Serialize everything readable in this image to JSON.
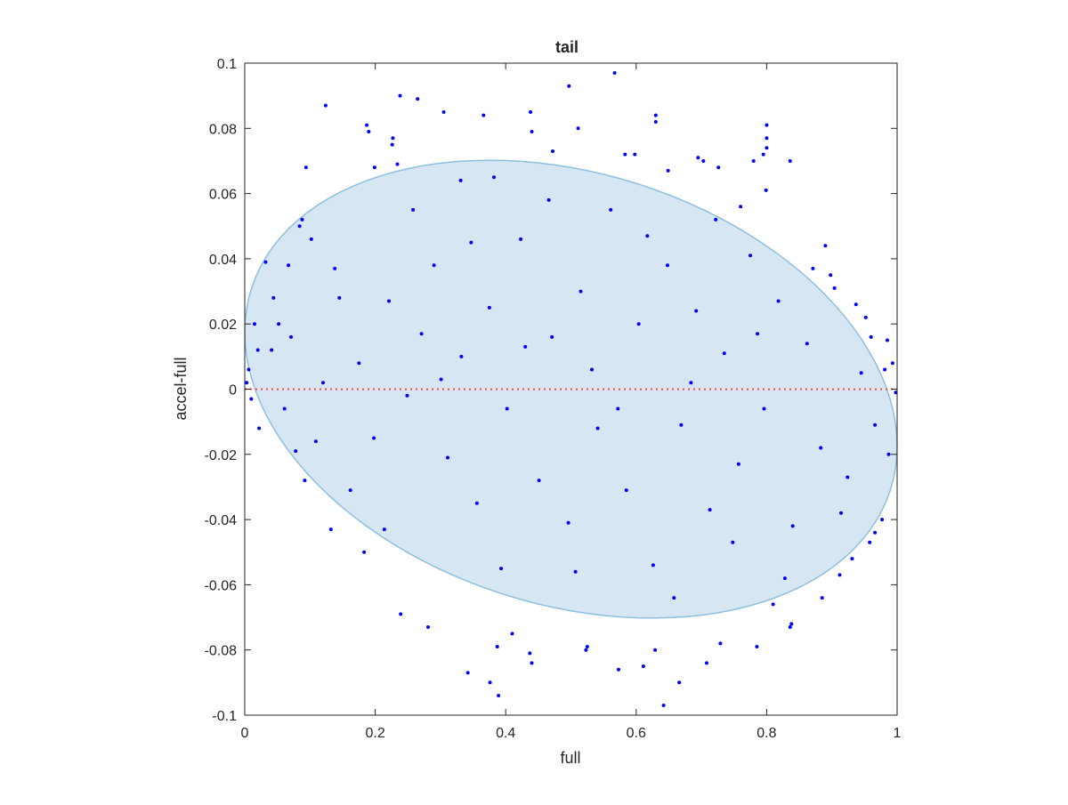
{
  "chart_data": {
    "type": "scatter",
    "title": "tail",
    "xlabel": "full",
    "ylabel": "accel-full",
    "xlim": [
      0,
      1
    ],
    "ylim": [
      -0.1,
      0.1
    ],
    "xticks": [
      "0",
      "0.2",
      "0.4",
      "0.6",
      "0.8",
      "1"
    ],
    "yticks": [
      "-0.1",
      "-0.08",
      "-0.06",
      "-0.04",
      "-0.02",
      "0",
      "0.02",
      "0.04",
      "0.06",
      "0.08",
      "0.1"
    ],
    "grid": false,
    "colors": {
      "points": "#0000ff",
      "ellipse_fill": "#d6e7f3",
      "ellipse_edge": "#8dbfdf",
      "zero_line": "#ff4040",
      "axes": "#262626"
    },
    "ellipse": {
      "description_center": [
        0.5,
        0.0
      ],
      "semi_axis_x": 0.5,
      "semi_axis_y": 0.068,
      "tilt_slope": -0.035
    },
    "zero_line_y": 0,
    "series": [
      {
        "values": [
          [
            0.124,
            0.087
          ],
          [
            0.238,
            0.09
          ],
          [
            0.265,
            0.089
          ],
          [
            0.305,
            0.085
          ],
          [
            0.366,
            0.084
          ],
          [
            0.438,
            0.085
          ],
          [
            0.44,
            0.079
          ],
          [
            0.497,
            0.093
          ],
          [
            0.567,
            0.097
          ],
          [
            0.511,
            0.08
          ],
          [
            0.472,
            0.073
          ],
          [
            0.583,
            0.072
          ],
          [
            0.63,
            0.084
          ],
          [
            0.63,
            0.082
          ],
          [
            0.598,
            0.072
          ],
          [
            0.649,
            0.067
          ],
          [
            0.695,
            0.071
          ],
          [
            0.703,
            0.07
          ],
          [
            0.726,
            0.068
          ],
          [
            0.78,
            0.07
          ],
          [
            0.8,
            0.081
          ],
          [
            0.8,
            0.077
          ],
          [
            0.8,
            0.074
          ],
          [
            0.795,
            0.072
          ],
          [
            0.187,
            0.081
          ],
          [
            0.19,
            0.079
          ],
          [
            0.227,
            0.077
          ],
          [
            0.226,
            0.075
          ],
          [
            0.094,
            0.068
          ],
          [
            0.382,
            0.065
          ],
          [
            0.331,
            0.064
          ],
          [
            0.234,
            0.069
          ],
          [
            0.199,
            0.068
          ],
          [
            0.836,
            0.07
          ],
          [
            0.799,
            0.061
          ],
          [
            0.76,
            0.056
          ],
          [
            0.89,
            0.044
          ],
          [
            0.898,
            0.035
          ],
          [
            0.937,
            0.026
          ],
          [
            0.96,
            0.016
          ],
          [
            0.985,
            0.015
          ],
          [
            0.993,
            0.008
          ],
          [
            0.998,
            -0.001
          ],
          [
            0.987,
            -0.02
          ],
          [
            0.977,
            -0.04
          ],
          [
            0.966,
            -0.044
          ],
          [
            0.958,
            -0.047
          ],
          [
            0.931,
            -0.052
          ],
          [
            0.912,
            -0.057
          ],
          [
            0.885,
            -0.064
          ],
          [
            0.838,
            -0.072
          ],
          [
            0.836,
            -0.073
          ],
          [
            0.81,
            -0.066
          ],
          [
            0.785,
            -0.079
          ],
          [
            0.729,
            -0.078
          ],
          [
            0.708,
            -0.084
          ],
          [
            0.666,
            -0.09
          ],
          [
            0.642,
            -0.097
          ],
          [
            0.629,
            -0.08
          ],
          [
            0.611,
            -0.085
          ],
          [
            0.573,
            -0.086
          ],
          [
            0.523,
            -0.08
          ],
          [
            0.525,
            -0.079
          ],
          [
            0.44,
            -0.084
          ],
          [
            0.437,
            -0.081
          ],
          [
            0.41,
            -0.075
          ],
          [
            0.387,
            -0.079
          ],
          [
            0.376,
            -0.09
          ],
          [
            0.389,
            -0.094
          ],
          [
            0.342,
            -0.087
          ],
          [
            0.239,
            -0.069
          ],
          [
            0.281,
            -0.073
          ],
          [
            0.132,
            -0.043
          ],
          [
            0.183,
            -0.05
          ],
          [
            0.067,
            0.038
          ],
          [
            0.084,
            0.05
          ],
          [
            0.088,
            0.052
          ],
          [
            0.102,
            0.046
          ],
          [
            0.032,
            0.039
          ],
          [
            0.015,
            0.02
          ],
          [
            0.006,
            0.006
          ],
          [
            0.01,
            -0.003
          ],
          [
            0.003,
            0.002
          ],
          [
            0.02,
            0.012
          ],
          [
            0.041,
            0.012
          ],
          [
            0.052,
            0.02
          ],
          [
            0.061,
            -0.006
          ],
          [
            0.078,
            -0.019
          ],
          [
            0.092,
            -0.028
          ],
          [
            0.12,
            0.002
          ],
          [
            0.145,
            0.028
          ],
          [
            0.175,
            0.008
          ],
          [
            0.198,
            -0.015
          ],
          [
            0.221,
            0.027
          ],
          [
            0.249,
            -0.002
          ],
          [
            0.271,
            0.017
          ],
          [
            0.29,
            0.038
          ],
          [
            0.311,
            -0.021
          ],
          [
            0.332,
            0.01
          ],
          [
            0.356,
            -0.035
          ],
          [
            0.375,
            0.025
          ],
          [
            0.402,
            -0.006
          ],
          [
            0.423,
            0.046
          ],
          [
            0.451,
            -0.028
          ],
          [
            0.471,
            0.016
          ],
          [
            0.496,
            -0.041
          ],
          [
            0.515,
            0.03
          ],
          [
            0.541,
            -0.012
          ],
          [
            0.561,
            0.055
          ],
          [
            0.585,
            -0.031
          ],
          [
            0.604,
            0.02
          ],
          [
            0.626,
            -0.054
          ],
          [
            0.648,
            0.038
          ],
          [
            0.669,
            -0.011
          ],
          [
            0.692,
            0.024
          ],
          [
            0.713,
            -0.037
          ],
          [
            0.735,
            0.011
          ],
          [
            0.757,
            -0.023
          ],
          [
            0.775,
            0.041
          ],
          [
            0.796,
            -0.006
          ],
          [
            0.818,
            0.027
          ],
          [
            0.84,
            -0.042
          ],
          [
            0.862,
            0.014
          ],
          [
            0.883,
            -0.018
          ],
          [
            0.904,
            0.031
          ],
          [
            0.924,
            -0.027
          ],
          [
            0.945,
            0.005
          ],
          [
            0.966,
            -0.011
          ],
          [
            0.022,
            -0.012
          ],
          [
            0.044,
            0.028
          ],
          [
            0.071,
            0.016
          ],
          [
            0.109,
            -0.016
          ],
          [
            0.138,
            0.037
          ],
          [
            0.162,
            -0.031
          ],
          [
            0.214,
            -0.043
          ],
          [
            0.258,
            0.055
          ],
          [
            0.301,
            0.003
          ],
          [
            0.347,
            0.045
          ],
          [
            0.393,
            -0.055
          ],
          [
            0.43,
            0.013
          ],
          [
            0.466,
            0.058
          ],
          [
            0.507,
            -0.056
          ],
          [
            0.532,
            0.006
          ],
          [
            0.572,
            -0.006
          ],
          [
            0.617,
            0.047
          ],
          [
            0.658,
            -0.064
          ],
          [
            0.684,
            0.002
          ],
          [
            0.722,
            0.052
          ],
          [
            0.748,
            -0.047
          ],
          [
            0.786,
            0.017
          ],
          [
            0.828,
            -0.058
          ],
          [
            0.871,
            0.037
          ],
          [
            0.914,
            -0.038
          ],
          [
            0.952,
            0.022
          ],
          [
            0.981,
            0.006
          ]
        ]
      }
    ]
  }
}
